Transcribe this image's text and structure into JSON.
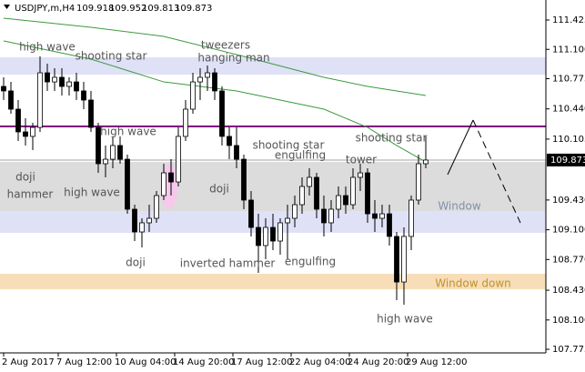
{
  "chart_data": {
    "type": "candlestick",
    "title": "USDJPY,m,H4",
    "header_values": [
      109.918,
      109.952,
      109.813,
      109.873
    ],
    "xlim": [
      -0.5,
      74.5
    ],
    "ylim": [
      107.735,
      111.647
    ],
    "yticks": [
      111.425,
      {
        "value": 111.1,
        "label": "111.100"
      },
      110.775,
      {
        "value": 110.44,
        "label": "110.440"
      },
      110.105,
      {
        "value": 109.43,
        "label": "109.430"
      },
      {
        "value": 109.1,
        "label": "109.100"
      },
      {
        "value": 108.77,
        "label": "108.770"
      },
      {
        "value": 108.43,
        "label": "108.430"
      },
      {
        "value": 108.1,
        "label": "108.100"
      },
      107.775
    ],
    "xticks": [
      {
        "value": 0,
        "label": "2 Aug 2017"
      },
      {
        "value": 7.5,
        "label": "7 Aug 12:00"
      },
      {
        "value": 15.5,
        "label": "10 Aug 04:00"
      },
      {
        "value": 23.5,
        "label": "14 Aug 20:00"
      },
      {
        "value": 31.5,
        "label": "17 Aug 12:00"
      },
      {
        "value": 39.5,
        "label": "22 Aug 04:00"
      },
      {
        "value": 47.5,
        "label": "24 Aug 20:00"
      },
      {
        "value": 55.5,
        "label": "29 Aug 12:00"
      }
    ],
    "current_price": 109.873,
    "open": [
      110.689,
      110.639,
      110.437,
      110.185,
      110.135,
      110.235,
      110.84,
      110.739,
      110.79,
      110.689,
      110.739,
      110.639,
      110.538,
      110.235,
      109.832,
      109.882,
      110.034,
      109.882,
      109.328,
      109.076,
      109.177,
      109.227,
      109.479,
      109.731,
      109.63,
      110.135,
      110.437,
      110.739,
      110.79,
      110.84,
      110.639,
      110.135,
      110.034,
      109.882,
      109.429,
      109.126,
      108.925,
      109.126,
      108.975,
      109.177,
      109.227,
      109.378,
      109.58,
      109.681,
      109.328,
      109.177,
      109.328,
      109.479,
      109.378,
      109.681,
      109.731,
      109.277,
      109.227,
      109.277,
      109.026,
      108.521,
      109.026,
      109.429,
      109.832
    ],
    "high": [
      110.79,
      110.739,
      110.538,
      110.336,
      110.286,
      111.022,
      110.941,
      110.891,
      110.891,
      110.79,
      110.84,
      110.739,
      110.639,
      110.286,
      110.034,
      110.135,
      110.135,
      109.933,
      109.378,
      109.227,
      109.378,
      109.53,
      109.832,
      109.882,
      110.235,
      110.538,
      110.84,
      110.891,
      110.921,
      110.891,
      110.689,
      110.235,
      110.235,
      109.933,
      109.53,
      109.277,
      109.227,
      109.277,
      109.227,
      109.378,
      109.479,
      109.681,
      109.782,
      109.731,
      109.479,
      109.429,
      109.58,
      109.58,
      109.782,
      109.832,
      109.782,
      109.429,
      109.378,
      109.378,
      109.076,
      109.126,
      109.479,
      109.933,
      110.135
    ],
    "low": [
      110.538,
      110.387,
      110.084,
      110.034,
      109.983,
      110.185,
      110.639,
      110.639,
      110.588,
      110.588,
      110.538,
      110.437,
      110.185,
      109.731,
      109.681,
      109.782,
      109.832,
      109.277,
      108.975,
      108.905,
      109.076,
      109.177,
      109.429,
      109.479,
      109.58,
      110.084,
      110.387,
      110.538,
      110.639,
      110.538,
      110.034,
      109.882,
      109.782,
      109.328,
      109.026,
      108.622,
      108.773,
      108.874,
      108.824,
      108.773,
      109.126,
      109.277,
      109.479,
      109.227,
      109.026,
      109.076,
      109.227,
      109.277,
      109.328,
      109.53,
      109.177,
      109.076,
      109.126,
      108.925,
      108.32,
      108.269,
      108.874,
      109.378,
      109.782
    ],
    "close": [
      110.639,
      110.437,
      110.185,
      110.135,
      110.235,
      110.84,
      110.739,
      110.79,
      110.689,
      110.739,
      110.639,
      110.538,
      110.235,
      109.832,
      109.882,
      110.034,
      109.882,
      109.328,
      109.076,
      109.177,
      109.227,
      109.479,
      109.731,
      109.63,
      110.135,
      110.437,
      110.739,
      110.79,
      110.84,
      110.639,
      110.135,
      110.034,
      109.882,
      109.429,
      109.126,
      108.925,
      109.126,
      108.975,
      109.177,
      109.227,
      109.378,
      109.58,
      109.681,
      109.328,
      109.177,
      109.328,
      109.479,
      109.378,
      109.681,
      109.731,
      109.277,
      109.227,
      109.277,
      109.026,
      108.521,
      109.026,
      109.429,
      109.832,
      109.873
    ],
    "zones": [
      {
        "ylim": [
          110.82,
          111.012
        ],
        "color": "#dfe1f7"
      },
      {
        "ylim": [
          109.308,
          109.852
        ],
        "color": "#dcdcdc"
      },
      {
        "ylim": [
          109.066,
          109.308
        ],
        "color": "#dfe1f7"
      },
      {
        "ylim": [
          108.44,
          108.612
        ],
        "color": "#f7deb8"
      }
    ],
    "level": {
      "value": 110.245,
      "color": "#800080"
    },
    "moving_averages": [
      {
        "color": "#3c9a3c",
        "x": [
          0,
          12,
          22,
          32,
          44,
          50,
          54,
          58
        ],
        "values": [
          111.445,
          111.344,
          111.244,
          111.042,
          110.79,
          110.689,
          110.639,
          110.588
        ]
      },
      {
        "color": "#3c9a3c",
        "x": [
          0,
          12,
          22,
          32,
          44,
          50,
          54,
          58
        ],
        "values": [
          111.193,
          110.992,
          110.739,
          110.639,
          110.437,
          110.235,
          110.034,
          109.852
        ]
      }
    ],
    "projection": {
      "x": [
        61,
        64.5,
        71
      ],
      "values": [
        109.711,
        110.316,
        109.177
      ]
    },
    "annotations": [
      {
        "text": "high wave",
        "color": "#555555"
      },
      {
        "text": "shooting star",
        "color": "#555555"
      },
      {
        "text": "tweezers",
        "color": "#555555"
      },
      {
        "text": "hanging man",
        "color": "#555555"
      },
      {
        "text": "high wave",
        "color": "#555555"
      },
      {
        "text": "shooting star",
        "color": "#555555"
      },
      {
        "text": "shooting star",
        "color": "#555555"
      },
      {
        "text": "engulfing",
        "color": "#555555"
      },
      {
        "text": "tower",
        "color": "#555555"
      },
      {
        "text": "doji",
        "color": "#555555"
      },
      {
        "text": "hammer",
        "color": "#555555"
      },
      {
        "text": "high wave",
        "color": "#555555"
      },
      {
        "text": "doji",
        "color": "#555555"
      },
      {
        "text": "Window",
        "color": "#8190a8"
      },
      {
        "text": "doji",
        "color": "#555555"
      },
      {
        "text": "inverted hammer",
        "color": "#555555"
      },
      {
        "text": "engulfing",
        "color": "#555555"
      },
      {
        "text": "Window down",
        "color": "#c0912e"
      },
      {
        "text": "high wave",
        "color": "#555555"
      }
    ]
  }
}
